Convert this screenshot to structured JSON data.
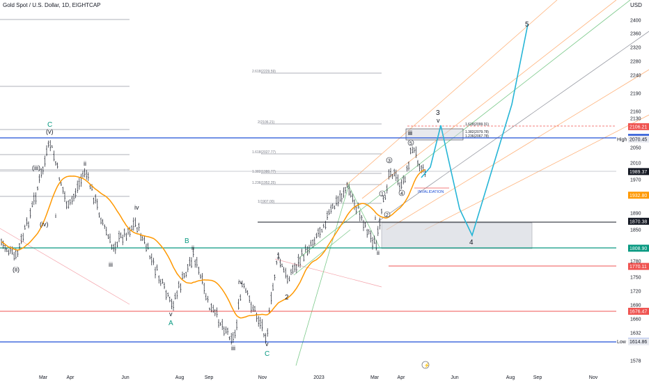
{
  "header": {
    "title": "Gold Spot / U.S. Dollar, 1D, EIGHTCAP",
    "currency": "USD"
  },
  "chart_data": {
    "type": "candlestick",
    "symbol": "Gold Spot / U.S. Dollar",
    "interval": "1D",
    "source": "EIGHTCAP",
    "ylim": [
      1565,
      2430
    ],
    "y_ticks": [
      2400,
      2360,
      2320,
      2280,
      2240,
      2190,
      2160,
      2130,
      2070,
      2050,
      2010,
      1970,
      1890,
      1850,
      1780,
      1750,
      1720,
      1690,
      1660,
      1632,
      1578
    ],
    "x_ticks": [
      "Mar",
      "Apr",
      "Jun",
      "Aug",
      "Sep",
      "Nov",
      "2023",
      "Mar",
      "Apr",
      "Jun",
      "Aug",
      "Sep",
      "Nov"
    ],
    "price_tags": [
      {
        "value": 2106.21,
        "label": "2106.21",
        "color": "#ef5350"
      },
      {
        "value": 2075.14,
        "label": "2075.14",
        "color": "#1e4fd6"
      },
      {
        "value": 2070.45,
        "label": "2070.45",
        "color": "#e8eaf0",
        "note": "High"
      },
      {
        "value": 1989.37,
        "label": "1989.37",
        "color": "#131722"
      },
      {
        "value": 1932.8,
        "label": "1932.80",
        "color": "#ff9800"
      },
      {
        "value": 1870.38,
        "label": "1870.38",
        "color": "#131722"
      },
      {
        "value": 1808.9,
        "label": "1808.90",
        "color": "#089981"
      },
      {
        "value": 1770.11,
        "label": "1770.11",
        "color": "#ef5350"
      },
      {
        "value": 1676.47,
        "label": "1676.47",
        "color": "#ef5350"
      },
      {
        "value": 1615.3,
        "label": "1615.30",
        "color": "#1e4fd6"
      },
      {
        "value": 1614.86,
        "label": "1614.86",
        "color": "#e8eaf0",
        "note": "Low"
      }
    ],
    "levels": [
      {
        "value": 2075.14,
        "color": "#1e4fd6"
      },
      {
        "value": 1870.38,
        "color": "#131722"
      },
      {
        "value": 1808.9,
        "color": "#089981"
      },
      {
        "value": 1770.11,
        "color": "#ef5350"
      },
      {
        "value": 1676.47,
        "color": "#ef5350"
      },
      {
        "value": 1615.3,
        "color": "#1e4fd6"
      },
      {
        "value": 2106.21,
        "color": "#ef5350",
        "dashed": true
      }
    ],
    "fib_labels": [
      {
        "text": "2.618(2229.59)"
      },
      {
        "text": "2(2106.21)"
      },
      {
        "text": "1.618(2027.77)"
      },
      {
        "text": "1.382(1980.77)"
      },
      {
        "text": "1.236(1952.25)"
      },
      {
        "text": "1(1907.00)"
      },
      {
        "text": "1.618(2099.31)"
      },
      {
        "text": "1.382(2079.78)"
      },
      {
        "text": "1.236(2067.78)"
      }
    ],
    "annotations": {
      "invalidation": "INVALIDATION",
      "waves": [
        "C",
        "(v)",
        "(iii)",
        "ii",
        "(iv)",
        "i",
        "iv",
        "B",
        "ii",
        "iii",
        "(ii)",
        "v",
        "A",
        "iii",
        "iv",
        "1",
        "2",
        "v",
        "C",
        "iii",
        "3",
        "v",
        "4",
        "5",
        "i",
        "ii",
        "iii",
        "1",
        "2",
        "3",
        "4",
        "5"
      ]
    },
    "moving_average": {
      "color": "#ff9800"
    },
    "projection": {
      "color": "#26b5d6"
    }
  }
}
